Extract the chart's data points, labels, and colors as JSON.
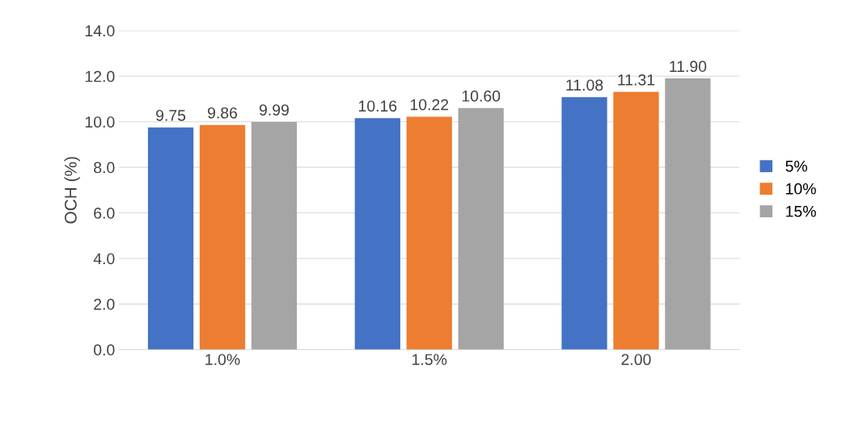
{
  "chart_data": {
    "type": "bar",
    "ylabel": "OCH (%)",
    "categories": [
      "1.0%",
      "1.5%",
      "2.00"
    ],
    "series": [
      {
        "name": "5%",
        "color": "#4472c4",
        "values": [
          9.75,
          10.16,
          11.08
        ]
      },
      {
        "name": "10%",
        "color": "#ed7d31",
        "values": [
          9.86,
          10.22,
          11.31
        ]
      },
      {
        "name": "15%",
        "color": "#a5a5a5",
        "values": [
          9.99,
          10.6,
          11.9
        ]
      }
    ],
    "ylim": [
      0,
      14
    ],
    "yticks": [
      {
        "value": 0,
        "label": "0.0"
      },
      {
        "value": 2,
        "label": "2.0"
      },
      {
        "value": 4,
        "label": "4.0"
      },
      {
        "value": 6,
        "label": "6.0"
      },
      {
        "value": 8,
        "label": "8.0"
      },
      {
        "value": 10,
        "label": "10.0"
      },
      {
        "value": 12,
        "label": "12.0"
      },
      {
        "value": 14,
        "label": "14.0"
      }
    ],
    "value_labels": [
      [
        "9.75",
        "10.16",
        "11.08"
      ],
      [
        "9.86",
        "10.22",
        "11.31"
      ],
      [
        "9.99",
        "10.60",
        "11.90"
      ]
    ],
    "grid": "y",
    "legend": "right"
  }
}
